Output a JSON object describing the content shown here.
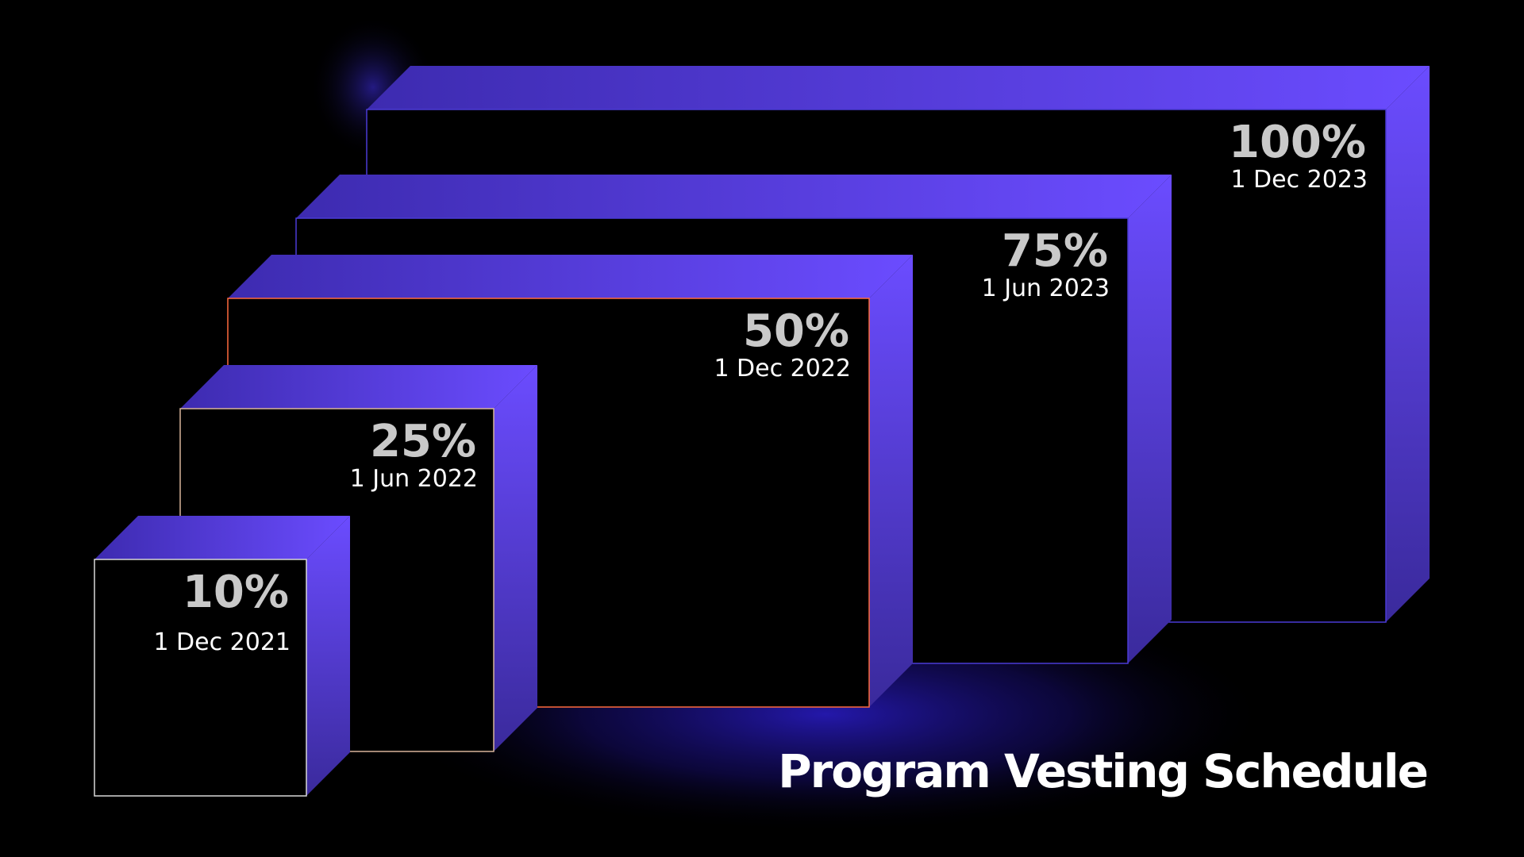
{
  "title": "Program Vesting Schedule",
  "colors": {
    "background": "#000000",
    "face_light": "#6b4cff",
    "face_dark": "#3d2bb0",
    "glow": "#2a1cc8",
    "text_primary": "#c9c9c9",
    "text_date": "#ffffff",
    "title": "#ffffff",
    "front_edge": "#d8d8d8",
    "accent_edge": "#ff6a3d",
    "inner_edge": "#4a3bd6"
  },
  "milestones": [
    {
      "percent": "10%",
      "date": "1 Dec 2021",
      "edge": "#d8d8d8"
    },
    {
      "percent": "25%",
      "date": "1 Jun 2022",
      "edge": "#d8b49a"
    },
    {
      "percent": "50%",
      "date": "1 Dec 2022",
      "edge": "#ff6a3d"
    },
    {
      "percent": "75%",
      "date": "1 Jun 2023",
      "edge": "#4a3bd6"
    },
    {
      "percent": "100%",
      "date": "1 Dec 2023",
      "edge": "#4a3bd6"
    }
  ]
}
